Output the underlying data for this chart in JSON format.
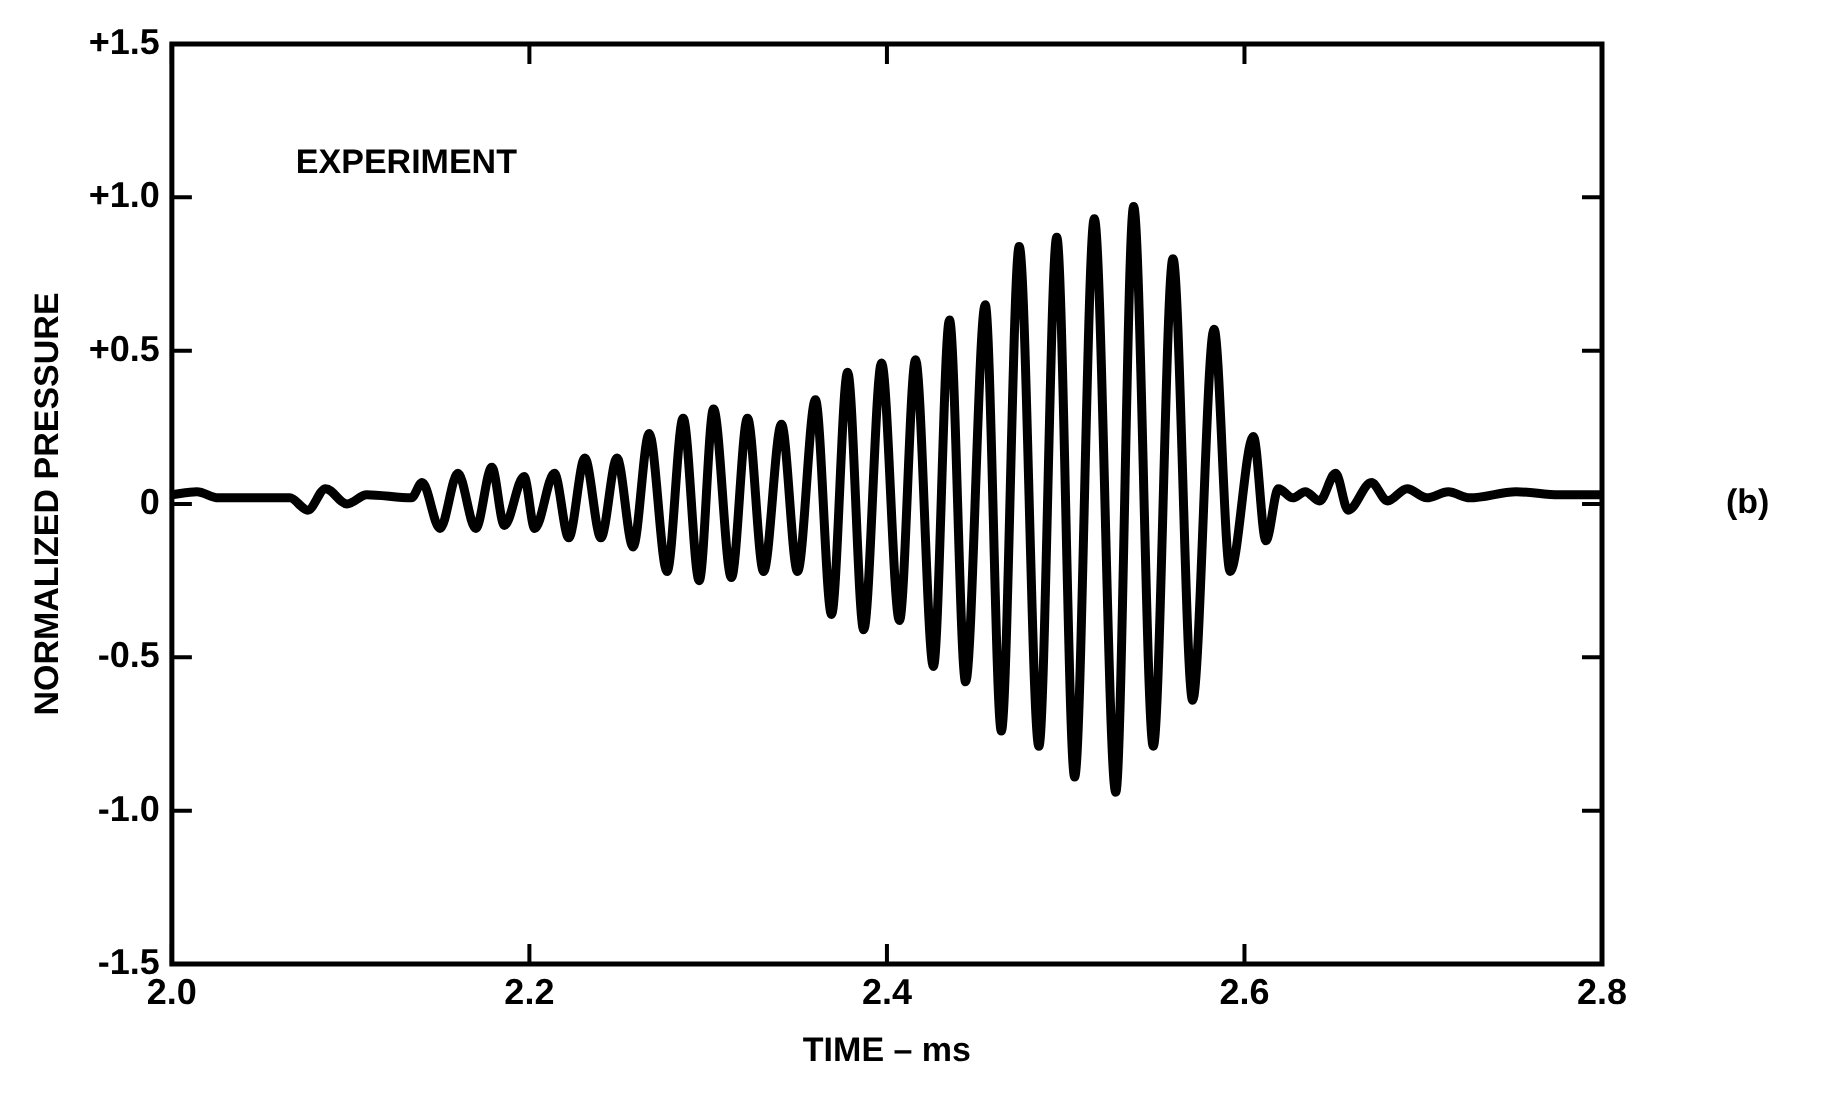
{
  "chart_data": {
    "type": "line",
    "xlabel": "TIME – ms",
    "ylabel": "NORMALIZED PRESSURE",
    "annotations": [
      "EXPERIMENT",
      "(b)"
    ],
    "xlim": [
      2.0,
      2.8
    ],
    "xticks": [
      {
        "value": 2.0,
        "label": "2.0"
      },
      2.2,
      2.4,
      2.6,
      2.8
    ],
    "ylim": [
      -1.5,
      1.5
    ],
    "yticks": [
      -1.5,
      {
        "value": -1.0,
        "label": "-1.0"
      },
      -0.5,
      0,
      {
        "value": 0.5,
        "label": "+0.5"
      },
      {
        "value": 1.0,
        "label": "+1.0"
      },
      {
        "value": 1.5,
        "label": "+1.5"
      }
    ],
    "grid": false,
    "legend": false,
    "marker": "none",
    "line_style": "solid",
    "series": [
      {
        "color": "#000000",
        "x": [
          2.0,
          2.014,
          2.026,
          2.066,
          2.076,
          2.086,
          2.098,
          2.109,
          2.134,
          2.14,
          2.15,
          2.16,
          2.17,
          2.179,
          2.186,
          2.197,
          2.203,
          2.214,
          2.222,
          2.231,
          2.24,
          2.249,
          2.258,
          2.267,
          2.277,
          2.286,
          2.295,
          2.303,
          2.313,
          2.322,
          2.331,
          2.341,
          2.35,
          2.36,
          2.369,
          2.378,
          2.387,
          2.397,
          2.407,
          2.416,
          2.426,
          2.435,
          2.444,
          2.455,
          2.464,
          2.474,
          2.485,
          2.495,
          2.505,
          2.516,
          2.528,
          2.538,
          2.549,
          2.56,
          2.571,
          2.583,
          2.592,
          2.605,
          2.612,
          2.619,
          2.627,
          2.634,
          2.642,
          2.651,
          2.658,
          2.671,
          2.68,
          2.691,
          2.702,
          2.714,
          2.726,
          2.752,
          2.776,
          2.8
        ],
        "values": [
          0.03,
          0.04,
          0.02,
          0.02,
          -0.02,
          0.05,
          0.0,
          0.03,
          0.02,
          0.07,
          -0.08,
          0.1,
          -0.08,
          0.12,
          -0.07,
          0.09,
          -0.08,
          0.1,
          -0.11,
          0.15,
          -0.11,
          0.15,
          -0.14,
          0.23,
          -0.22,
          0.28,
          -0.25,
          0.31,
          -0.24,
          0.28,
          -0.22,
          0.26,
          -0.22,
          0.34,
          -0.36,
          0.43,
          -0.41,
          0.46,
          -0.38,
          0.47,
          -0.53,
          0.6,
          -0.58,
          0.65,
          -0.74,
          0.84,
          -0.79,
          0.87,
          -0.89,
          0.93,
          -0.94,
          0.97,
          -0.79,
          0.8,
          -0.64,
          0.57,
          -0.22,
          0.22,
          -0.12,
          0.05,
          0.02,
          0.04,
          0.01,
          0.1,
          -0.02,
          0.07,
          0.01,
          0.05,
          0.02,
          0.04,
          0.02,
          0.04,
          0.03,
          0.03
        ]
      }
    ]
  }
}
